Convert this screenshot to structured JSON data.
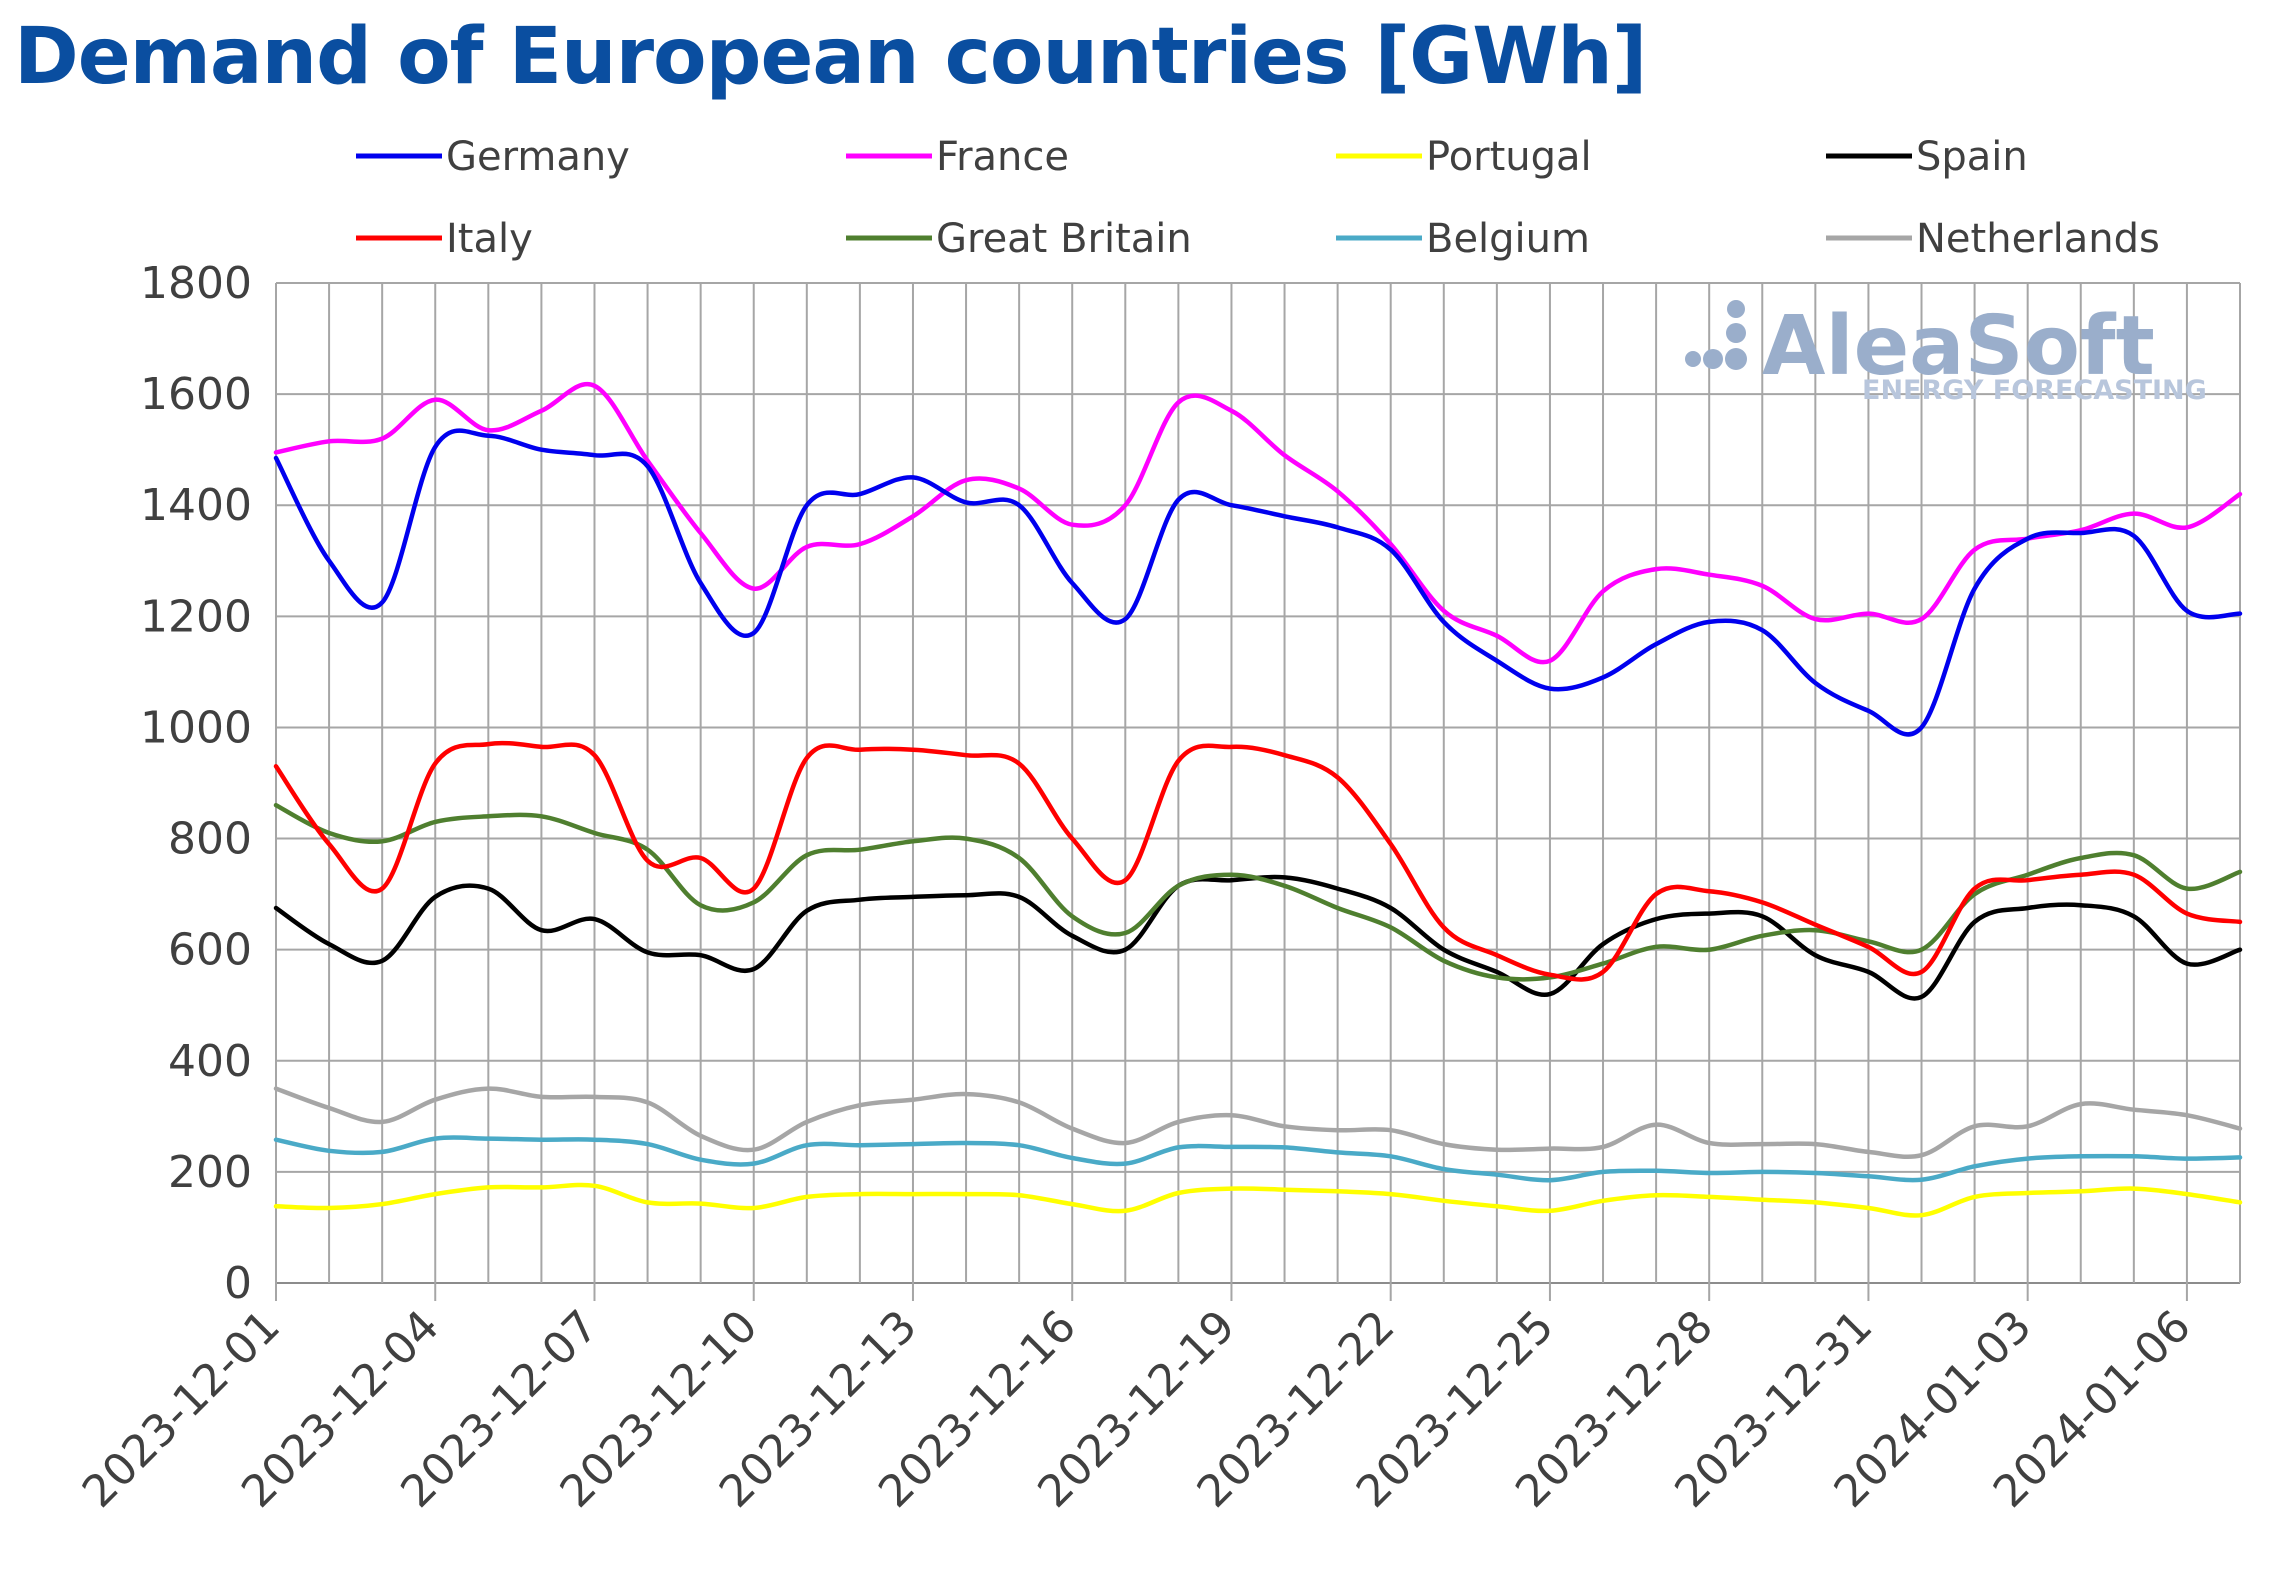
{
  "chart_data": {
    "type": "line",
    "title": "Demand of European countries [GWh]",
    "ylim": [
      0,
      1800
    ],
    "yticks": [
      0,
      200,
      400,
      600,
      800,
      1000,
      1200,
      1400,
      1600,
      1800
    ],
    "x_start": "2023-12-01",
    "x_end": "2024-01-07",
    "x_tick_labels": [
      "2023-12-01",
      "2023-12-04",
      "2023-12-07",
      "2023-12-10",
      "2023-12-13",
      "2023-12-16",
      "2023-12-19",
      "2023-12-22",
      "2023-12-25",
      "2023-12-28",
      "2023-12-31",
      "2024-01-03",
      "2024-01-06"
    ],
    "x_dates": [
      "2023-12-01",
      "2023-12-02",
      "2023-12-03",
      "2023-12-04",
      "2023-12-05",
      "2023-12-06",
      "2023-12-07",
      "2023-12-08",
      "2023-12-09",
      "2023-12-10",
      "2023-12-11",
      "2023-12-12",
      "2023-12-13",
      "2023-12-14",
      "2023-12-15",
      "2023-12-16",
      "2023-12-17",
      "2023-12-18",
      "2023-12-19",
      "2023-12-20",
      "2023-12-21",
      "2023-12-22",
      "2023-12-23",
      "2023-12-24",
      "2023-12-25",
      "2023-12-26",
      "2023-12-27",
      "2023-12-28",
      "2023-12-29",
      "2023-12-30",
      "2023-12-31",
      "2024-01-01",
      "2024-01-02",
      "2024-01-03",
      "2024-01-04",
      "2024-01-05",
      "2024-01-06",
      "2024-01-07"
    ],
    "grid": true,
    "legend_position": "top",
    "series": [
      {
        "name": "Germany",
        "color": "#0000ee",
        "values": [
          1485,
          1300,
          1225,
          1505,
          1525,
          1500,
          1490,
          1470,
          1260,
          1170,
          1400,
          1420,
          1450,
          1405,
          1400,
          1260,
          1195,
          1410,
          1400,
          1380,
          1360,
          1320,
          1190,
          1120,
          1070,
          1090,
          1150,
          1190,
          1175,
          1080,
          1030,
          1000,
          1250,
          1340,
          1350,
          1345,
          1210,
          1205
        ]
      },
      {
        "name": "France",
        "color": "#ff00ff",
        "values": [
          1495,
          1515,
          1520,
          1590,
          1535,
          1570,
          1615,
          1480,
          1350,
          1250,
          1325,
          1330,
          1380,
          1445,
          1430,
          1365,
          1400,
          1585,
          1570,
          1490,
          1425,
          1330,
          1210,
          1165,
          1120,
          1245,
          1285,
          1275,
          1255,
          1195,
          1205,
          1195,
          1320,
          1340,
          1355,
          1385,
          1360,
          1420
        ]
      },
      {
        "name": "Portugal",
        "color": "#ffff00",
        "values": [
          138,
          135,
          142,
          160,
          172,
          172,
          175,
          145,
          143,
          135,
          155,
          160,
          160,
          160,
          158,
          142,
          130,
          162,
          170,
          168,
          165,
          160,
          148,
          138,
          130,
          148,
          158,
          155,
          150,
          145,
          135,
          122,
          155,
          162,
          165,
          170,
          160,
          145
        ]
      },
      {
        "name": "Spain",
        "color": "#000000",
        "values": [
          675,
          610,
          580,
          695,
          710,
          635,
          655,
          595,
          590,
          565,
          670,
          690,
          695,
          698,
          695,
          625,
          600,
          715,
          725,
          730,
          710,
          675,
          600,
          560,
          520,
          610,
          655,
          665,
          660,
          590,
          560,
          515,
          650,
          675,
          680,
          660,
          575,
          600
        ]
      },
      {
        "name": "Italy",
        "color": "#ff0000",
        "values": [
          930,
          790,
          710,
          935,
          970,
          965,
          950,
          760,
          765,
          710,
          945,
          960,
          960,
          950,
          935,
          800,
          725,
          940,
          965,
          950,
          910,
          790,
          640,
          590,
          555,
          560,
          700,
          705,
          685,
          645,
          605,
          560,
          710,
          725,
          735,
          735,
          665,
          650
        ]
      },
      {
        "name": "Great Britain",
        "color": "#4f7f2f",
        "values": [
          860,
          810,
          795,
          830,
          840,
          840,
          810,
          780,
          680,
          685,
          770,
          780,
          795,
          800,
          765,
          660,
          630,
          715,
          735,
          715,
          675,
          640,
          580,
          550,
          550,
          575,
          605,
          600,
          625,
          635,
          615,
          600,
          700,
          735,
          765,
          770,
          710,
          740
        ]
      },
      {
        "name": "Belgium",
        "color": "#4aaac7",
        "values": [
          258,
          238,
          236,
          260,
          260,
          258,
          258,
          250,
          222,
          215,
          248,
          248,
          250,
          252,
          248,
          225,
          215,
          244,
          245,
          244,
          235,
          228,
          205,
          195,
          185,
          200,
          202,
          198,
          200,
          198,
          192,
          186,
          210,
          224,
          228,
          228,
          224,
          226
        ]
      },
      {
        "name": "Netherlands",
        "color": "#a6a6a6",
        "values": [
          350,
          315,
          290,
          330,
          350,
          335,
          335,
          325,
          265,
          240,
          290,
          320,
          330,
          340,
          325,
          278,
          252,
          290,
          302,
          282,
          275,
          275,
          250,
          240,
          242,
          245,
          285,
          252,
          250,
          250,
          236,
          230,
          282,
          282,
          322,
          312,
          302,
          278
        ]
      }
    ]
  },
  "watermark": {
    "brand": "AleaSoft",
    "tagline": "ENERGY FORECASTING"
  }
}
